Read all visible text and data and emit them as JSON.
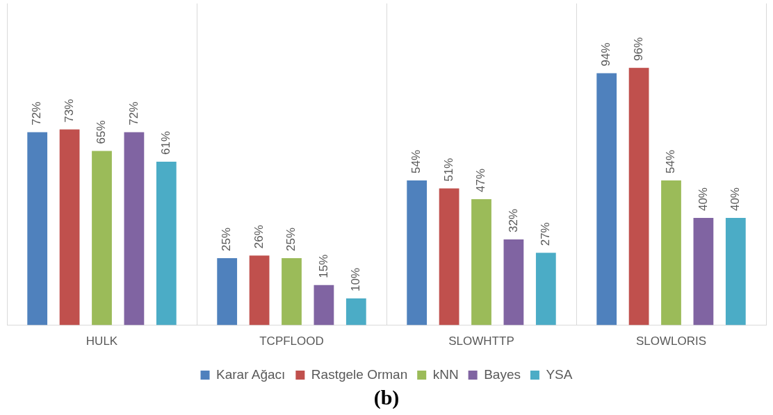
{
  "chart_data": {
    "type": "bar",
    "categories": [
      "HULK",
      "TCPFLOOD",
      "SLOWHTTP",
      "SLOWLORIS"
    ],
    "series": [
      {
        "name": "Karar Ağacı",
        "color": "#4f81bd",
        "values": [
          72,
          25,
          54,
          94
        ],
        "value_labels": [
          "72%",
          "25%",
          "54%",
          "94%"
        ]
      },
      {
        "name": "Rastgele Orman",
        "color": "#c0504d",
        "values": [
          73,
          26,
          51,
          96
        ],
        "value_labels": [
          "73%",
          "26%",
          "51%",
          "96%"
        ]
      },
      {
        "name": "kNN",
        "color": "#9bbb59",
        "values": [
          65,
          25,
          47,
          54
        ],
        "value_labels": [
          "65%",
          "25%",
          "47%",
          "54%"
        ]
      },
      {
        "name": "Bayes",
        "color": "#8064a2",
        "values": [
          72,
          15,
          32,
          40
        ],
        "value_labels": [
          "72%",
          "15%",
          "32%",
          "40%"
        ]
      },
      {
        "name": "YSA",
        "color": "#4bacc6",
        "values": [
          61,
          10,
          27,
          40
        ],
        "value_labels": [
          "61%",
          "10%",
          "27%",
          "40%"
        ]
      }
    ],
    "grid": "x",
    "legend": "bottom",
    "tick_labels": "x",
    "annotations": [
      "(b)"
    ]
  }
}
